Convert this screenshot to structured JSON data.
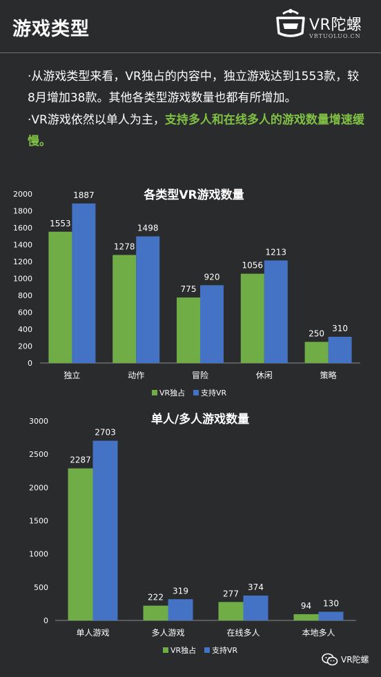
{
  "header": {
    "title": "游戏类型",
    "logo_text": "VR陀螺",
    "logo_sub": "VRTUOLUO.CN"
  },
  "intro": {
    "p1": "·从游戏类型来看，VR独占的内容中，独立游戏达到1553款，较8月增加38款。其他各类型游戏数量也都有所增加。",
    "p2_plain": "·VR游戏依然以单人为主，",
    "p2_highlight": "支持多人和在线多人的游戏数量增速缓慢。"
  },
  "colors": {
    "vr_exclusive": "#70ad47",
    "vr_support": "#4472c4",
    "highlight": "#80c144"
  },
  "chart_data": [
    {
      "type": "bar",
      "title": "各类型VR游戏数量",
      "categories": [
        "独立",
        "动作",
        "冒险",
        "休闲",
        "策略"
      ],
      "series": [
        {
          "name": "VR独占",
          "values": [
            1553,
            1278,
            775,
            1056,
            250
          ]
        },
        {
          "name": "支持VR",
          "values": [
            1887,
            1498,
            920,
            1213,
            310
          ]
        }
      ],
      "ylim": [
        0,
        2000
      ],
      "yticks": [
        0,
        200,
        400,
        600,
        800,
        1000,
        1200,
        1400,
        1600,
        1800,
        2000
      ],
      "grid": false,
      "legend": "bottom"
    },
    {
      "type": "bar",
      "title": "单人/多人游戏数量",
      "categories": [
        "单人游戏",
        "多人游戏",
        "在线多人",
        "本地多人"
      ],
      "series": [
        {
          "name": "VR独占",
          "values": [
            2287,
            222,
            277,
            94
          ]
        },
        {
          "name": "支持VR",
          "values": [
            2703,
            319,
            374,
            130
          ]
        }
      ],
      "ylim": [
        0,
        3000
      ],
      "yticks": [
        0,
        500,
        1000,
        1500,
        2000,
        2500,
        3000
      ],
      "grid": false,
      "legend": "bottom"
    }
  ],
  "watermark": {
    "text": "VR陀螺",
    "icon": "wechat-icon"
  }
}
